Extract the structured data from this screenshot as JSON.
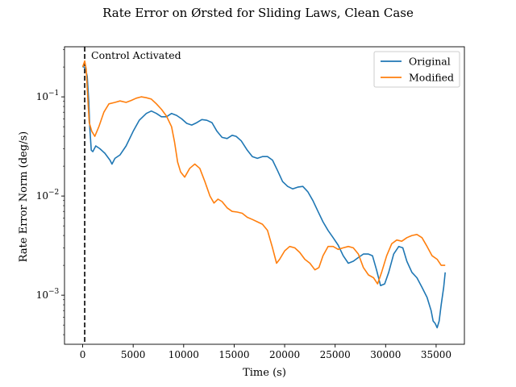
{
  "chart_data": {
    "type": "line",
    "title": "Rate Error on Ørsted for Sliding Laws, Clean Case",
    "xlabel": "Time (s)",
    "ylabel": "Rate Error Norm (deg/s)",
    "xlim": [
      -1800,
      37800
    ],
    "ylim": [
      0.00032,
      0.32
    ],
    "yscale": "log",
    "grid": false,
    "legend_position": "top-right",
    "xticks": [
      0,
      5000,
      10000,
      15000,
      20000,
      25000,
      30000,
      35000
    ],
    "xtick_labels": [
      "0",
      "5000",
      "10000",
      "15000",
      "20000",
      "25000",
      "30000",
      "35000"
    ],
    "yticks": [
      0.001,
      0.01,
      0.1
    ],
    "ytick_labels": [
      "10",
      "10",
      "10"
    ],
    "ytick_exponents": [
      "−3",
      "−2",
      "−1"
    ],
    "annotations": [
      {
        "text": "Control Activated",
        "x": 200,
        "style": "vertical dashed line"
      }
    ],
    "series": [
      {
        "name": "Original",
        "color": "#1f77b4",
        "points": [
          [
            0,
            0.2
          ],
          [
            150,
            0.2
          ],
          [
            300,
            0.19
          ],
          [
            450,
            0.16
          ],
          [
            600,
            0.09
          ],
          [
            700,
            0.05
          ],
          [
            850,
            0.029
          ],
          [
            1000,
            0.028
          ],
          [
            1300,
            0.032
          ],
          [
            1700,
            0.03
          ],
          [
            2200,
            0.027
          ],
          [
            2700,
            0.023
          ],
          [
            2900,
            0.021
          ],
          [
            3200,
            0.024
          ],
          [
            3700,
            0.026
          ],
          [
            4300,
            0.032
          ],
          [
            5000,
            0.045
          ],
          [
            5600,
            0.058
          ],
          [
            6300,
            0.068
          ],
          [
            6800,
            0.072
          ],
          [
            7300,
            0.068
          ],
          [
            7800,
            0.063
          ],
          [
            8300,
            0.063
          ],
          [
            8800,
            0.068
          ],
          [
            9300,
            0.065
          ],
          [
            9800,
            0.06
          ],
          [
            10300,
            0.054
          ],
          [
            10800,
            0.052
          ],
          [
            11300,
            0.055
          ],
          [
            11800,
            0.059
          ],
          [
            12300,
            0.058
          ],
          [
            12800,
            0.055
          ],
          [
            13300,
            0.045
          ],
          [
            13800,
            0.039
          ],
          [
            14300,
            0.038
          ],
          [
            14800,
            0.041
          ],
          [
            15200,
            0.04
          ],
          [
            15700,
            0.036
          ],
          [
            16300,
            0.029
          ],
          [
            16800,
            0.025
          ],
          [
            17300,
            0.024
          ],
          [
            17800,
            0.025
          ],
          [
            18300,
            0.025
          ],
          [
            18800,
            0.023
          ],
          [
            19300,
            0.018
          ],
          [
            19800,
            0.014
          ],
          [
            20300,
            0.0125
          ],
          [
            20800,
            0.0118
          ],
          [
            21300,
            0.0123
          ],
          [
            21800,
            0.0125
          ],
          [
            22300,
            0.011
          ],
          [
            22800,
            0.009
          ],
          [
            23300,
            0.007
          ],
          [
            23800,
            0.0055
          ],
          [
            24300,
            0.0045
          ],
          [
            24800,
            0.0038
          ],
          [
            25300,
            0.0032
          ],
          [
            25800,
            0.0025
          ],
          [
            26300,
            0.0021
          ],
          [
            26800,
            0.0022
          ],
          [
            27300,
            0.0024
          ],
          [
            27800,
            0.0026
          ],
          [
            28300,
            0.0026
          ],
          [
            28700,
            0.0025
          ],
          [
            29100,
            0.0018
          ],
          [
            29500,
            0.00125
          ],
          [
            29900,
            0.0013
          ],
          [
            30300,
            0.0017
          ],
          [
            30800,
            0.0026
          ],
          [
            31300,
            0.0031
          ],
          [
            31700,
            0.003
          ],
          [
            32100,
            0.0022
          ],
          [
            32600,
            0.0017
          ],
          [
            33100,
            0.0015
          ],
          [
            33600,
            0.0012
          ],
          [
            34100,
            0.00095
          ],
          [
            34500,
            0.0007
          ],
          [
            34700,
            0.00055
          ],
          [
            34900,
            0.00052
          ],
          [
            35100,
            0.00047
          ],
          [
            35300,
            0.00055
          ],
          [
            35500,
            0.0008
          ],
          [
            35750,
            0.0012
          ],
          [
            35900,
            0.0017
          ]
        ]
      },
      {
        "name": "Modified",
        "color": "#ff7f0e",
        "points": [
          [
            0,
            0.2
          ],
          [
            200,
            0.23
          ],
          [
            350,
            0.19
          ],
          [
            500,
            0.1
          ],
          [
            650,
            0.055
          ],
          [
            900,
            0.045
          ],
          [
            1200,
            0.04
          ],
          [
            1600,
            0.05
          ],
          [
            2100,
            0.07
          ],
          [
            2600,
            0.085
          ],
          [
            3200,
            0.088
          ],
          [
            3700,
            0.091
          ],
          [
            4300,
            0.088
          ],
          [
            4800,
            0.092
          ],
          [
            5300,
            0.097
          ],
          [
            5800,
            0.1
          ],
          [
            6300,
            0.098
          ],
          [
            6800,
            0.095
          ],
          [
            7300,
            0.085
          ],
          [
            7800,
            0.075
          ],
          [
            8300,
            0.064
          ],
          [
            8800,
            0.05
          ],
          [
            9100,
            0.035
          ],
          [
            9400,
            0.022
          ],
          [
            9700,
            0.0175
          ],
          [
            10100,
            0.0155
          ],
          [
            10600,
            0.019
          ],
          [
            11100,
            0.021
          ],
          [
            11600,
            0.019
          ],
          [
            12100,
            0.014
          ],
          [
            12600,
            0.01
          ],
          [
            13000,
            0.0085
          ],
          [
            13400,
            0.0093
          ],
          [
            13800,
            0.0088
          ],
          [
            14300,
            0.0076
          ],
          [
            14800,
            0.007
          ],
          [
            15300,
            0.0069
          ],
          [
            15800,
            0.0067
          ],
          [
            16300,
            0.0061
          ],
          [
            16800,
            0.0058
          ],
          [
            17300,
            0.0055
          ],
          [
            17800,
            0.0052
          ],
          [
            18300,
            0.0045
          ],
          [
            18800,
            0.003
          ],
          [
            19200,
            0.0021
          ],
          [
            19500,
            0.0023
          ],
          [
            20000,
            0.0028
          ],
          [
            20500,
            0.0031
          ],
          [
            21000,
            0.003
          ],
          [
            21500,
            0.0027
          ],
          [
            22000,
            0.0023
          ],
          [
            22500,
            0.0021
          ],
          [
            23000,
            0.0018
          ],
          [
            23400,
            0.0019
          ],
          [
            23800,
            0.0025
          ],
          [
            24300,
            0.0031
          ],
          [
            24800,
            0.0031
          ],
          [
            25300,
            0.0029
          ],
          [
            25800,
            0.003
          ],
          [
            26300,
            0.0031
          ],
          [
            26800,
            0.003
          ],
          [
            27300,
            0.0026
          ],
          [
            27800,
            0.0019
          ],
          [
            28300,
            0.0016
          ],
          [
            28800,
            0.0015
          ],
          [
            29200,
            0.0013
          ],
          [
            29600,
            0.0017
          ],
          [
            30100,
            0.0025
          ],
          [
            30600,
            0.0033
          ],
          [
            31100,
            0.0036
          ],
          [
            31600,
            0.0035
          ],
          [
            32100,
            0.0038
          ],
          [
            32600,
            0.004
          ],
          [
            33100,
            0.0041
          ],
          [
            33600,
            0.0038
          ],
          [
            34100,
            0.0031
          ],
          [
            34600,
            0.0025
          ],
          [
            35100,
            0.0023
          ],
          [
            35500,
            0.002
          ],
          [
            35900,
            0.002
          ]
        ]
      }
    ]
  }
}
